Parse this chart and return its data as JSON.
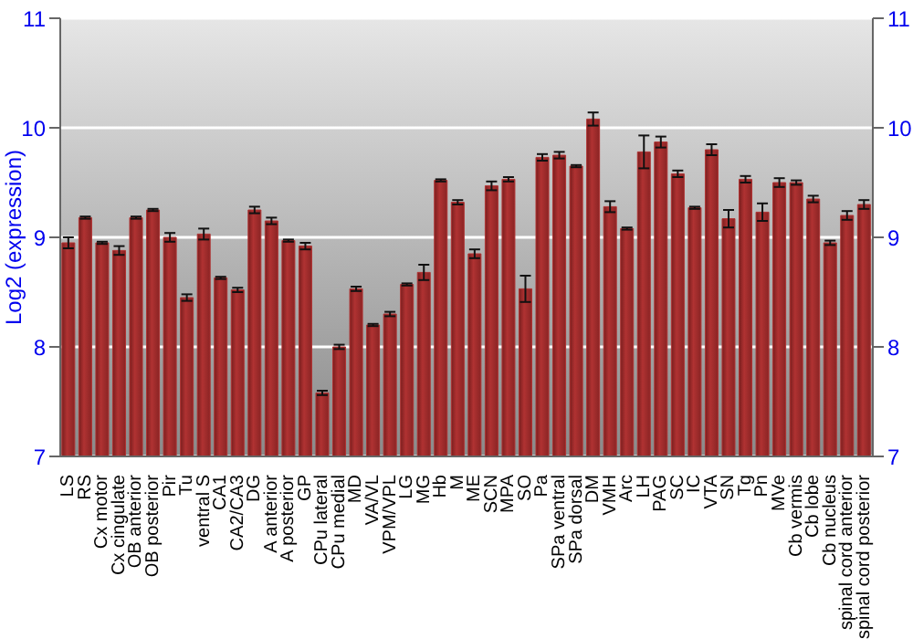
{
  "chart_data": {
    "type": "bar",
    "ylabel": "Log2 (expression)",
    "categories": [
      "LS",
      "RS",
      "Cx motor",
      "Cx cingulate",
      "OB anterior",
      "OB posterior",
      "Pir",
      "Tu",
      "ventral S",
      "CA1",
      "CA2/CA3",
      "DG",
      "A anterior",
      "A posterior",
      "GP",
      "CPu lateral",
      "CPu medial",
      "MD",
      "VA/VL",
      "VPM/VPL",
      "LG",
      "MG",
      "Hb",
      "M",
      "ME",
      "SCN",
      "MPA",
      "SO",
      "Pa",
      "SPa ventral",
      "SPa dorsal",
      "DM",
      "VMH",
      "Arc",
      "LH",
      "PAG",
      "SC",
      "IC",
      "VTA",
      "SN",
      "Tg",
      "Pn",
      "MVe",
      "Cb vermis",
      "Cb lobe",
      "Cb nucleus",
      "spinal cord anterior",
      "spinal cord posterior"
    ],
    "values": [
      8.95,
      9.18,
      8.95,
      8.88,
      9.18,
      9.25,
      9.0,
      8.45,
      9.03,
      8.63,
      8.52,
      9.25,
      9.15,
      8.97,
      8.92,
      7.58,
      8.0,
      8.53,
      8.2,
      8.3,
      8.57,
      8.68,
      9.52,
      9.32,
      8.85,
      9.47,
      9.53,
      8.53,
      9.73,
      9.75,
      9.65,
      10.08,
      9.28,
      9.08,
      9.78,
      9.87,
      9.58,
      9.27,
      9.8,
      9.17,
      9.53,
      9.23,
      9.5,
      9.5,
      9.35,
      8.95,
      9.2,
      9.3
    ],
    "errors": [
      0.05,
      0.01,
      0.01,
      0.04,
      0.01,
      0.01,
      0.04,
      0.03,
      0.05,
      0.01,
      0.02,
      0.03,
      0.03,
      0.01,
      0.03,
      0.02,
      0.02,
      0.02,
      0.01,
      0.02,
      0.01,
      0.07,
      0.01,
      0.02,
      0.04,
      0.04,
      0.02,
      0.12,
      0.03,
      0.03,
      0.01,
      0.06,
      0.05,
      0.01,
      0.15,
      0.05,
      0.03,
      0.01,
      0.05,
      0.08,
      0.03,
      0.08,
      0.04,
      0.02,
      0.03,
      0.02,
      0.04,
      0.04
    ],
    "color": "#b03232",
    "ylim": [
      7,
      11
    ],
    "yticks": [
      7,
      8,
      9,
      10,
      11
    ],
    "y2lim": [
      7,
      11
    ],
    "y2ticks": [
      7,
      8,
      9,
      10,
      11
    ],
    "grid": "y"
  }
}
